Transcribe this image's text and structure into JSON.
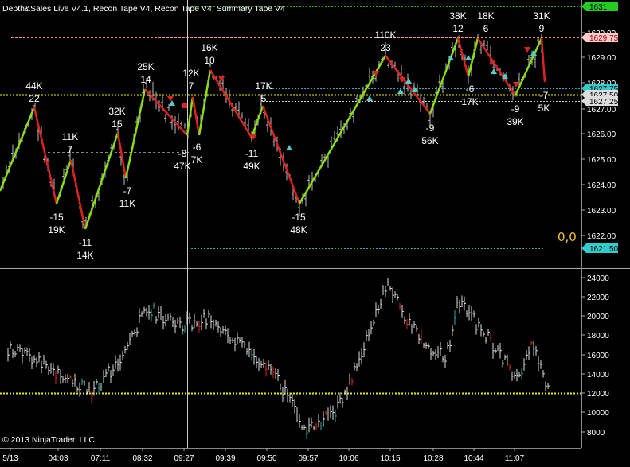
{
  "header": {
    "title": "Depth&Sales Live V4.1, Recon Tape V4, Recon Tape V4, Summary Tape V4"
  },
  "footer": {
    "copyright": "© 2013 NinjaTrader, LLC"
  },
  "price_panel": {
    "axis_ticks": [
      "1630.00",
      "1629.00",
      "1628.00",
      "1627.00",
      "1626.00",
      "1625.00",
      "1624.00",
      "1623.00",
      "1622.00"
    ],
    "price_badges": [
      {
        "text": "1631.",
        "color": "#22cc22",
        "text_color": "#000000"
      },
      {
        "text": "1629.75",
        "color": "#ffcccc",
        "text_color": "#aa0000"
      },
      {
        "text": "1627.75",
        "color": "#33cccc",
        "text_color": "#000000"
      },
      {
        "text": "1627.50",
        "color": "#dddddd",
        "text_color": "#000000"
      },
      {
        "text": "1627.25",
        "color": "#dddddd",
        "text_color": "#000000"
      },
      {
        "text": "1621.50",
        "color": "#33cccc",
        "text_color": "#000000"
      }
    ],
    "corner_readout": "0,0",
    "swing_labels": [
      {
        "count": "44K",
        "swing": "22"
      },
      {
        "count": "-15",
        "swing": "19K"
      },
      {
        "count": "11K",
        "swing": "7"
      },
      {
        "count": "-11",
        "swing": "14K"
      },
      {
        "count": "32K",
        "swing": "15"
      },
      {
        "count": "-7",
        "swing": "11K"
      },
      {
        "count": "25K",
        "swing": "14"
      },
      {
        "count": "12K",
        "swing": "7"
      },
      {
        "count": "-8",
        "swing": "47K"
      },
      {
        "count": "-6",
        "swing": "7K"
      },
      {
        "count": "16K",
        "swing": "10"
      },
      {
        "count": "-11",
        "swing": "49K"
      },
      {
        "count": "17K",
        "swing": "5"
      },
      {
        "count": "-15",
        "swing": "48K"
      },
      {
        "count": "110K",
        "swing": "23"
      },
      {
        "count": "-9",
        "swing": "56K"
      },
      {
        "count": "38K",
        "swing": "12"
      },
      {
        "count": "-6",
        "swing": "17K"
      },
      {
        "count": "18K",
        "swing": "6"
      },
      {
        "count": "-9",
        "swing": "39K"
      },
      {
        "count": "31K",
        "swing": "9"
      },
      {
        "count": "-7",
        "swing": "5K"
      }
    ]
  },
  "volume_panel": {
    "axis_ticks": [
      "24000",
      "22000",
      "20000",
      "18000",
      "16000",
      "14000",
      "12000",
      "10000",
      "8000"
    ]
  },
  "time_axis": {
    "labels": [
      "5/13",
      "04:03",
      "07:11",
      "08:32",
      "09:27",
      "09:39",
      "09:50",
      "09:57",
      "10:06",
      "10:15",
      "10:28",
      "10:44",
      "11:07"
    ]
  },
  "colors": {
    "up_swing": "#88dd11",
    "down_swing": "#dd2222",
    "zero_line": "#e8e800",
    "bars": "#cccccc",
    "lower_line": "#5577cc"
  }
}
